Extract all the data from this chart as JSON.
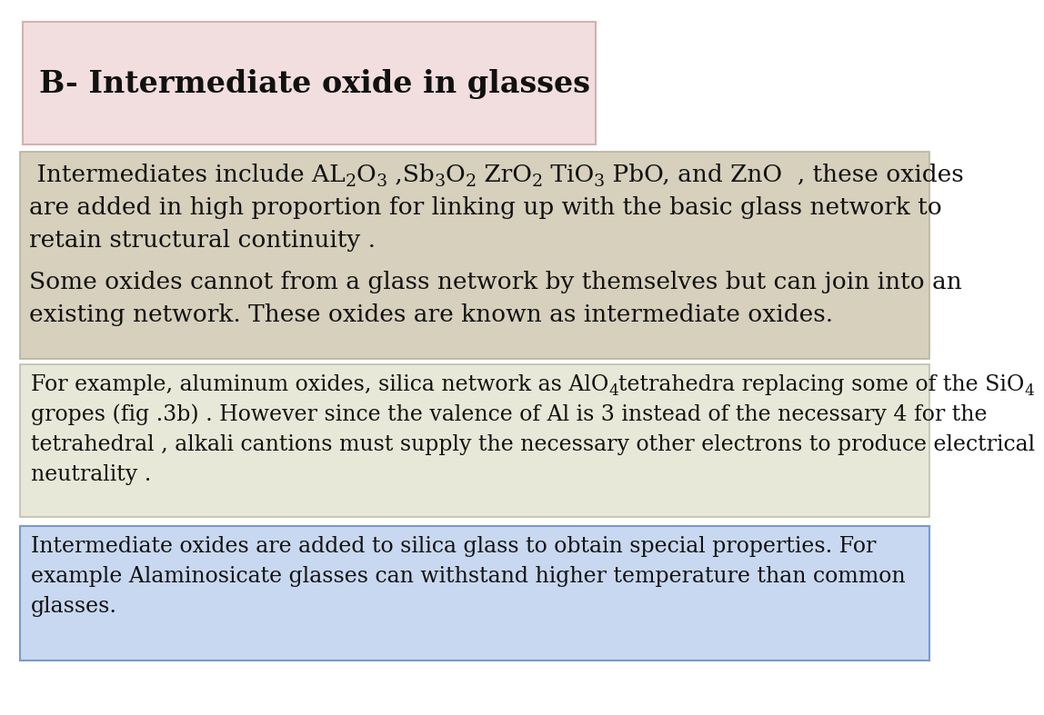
{
  "title": "B- Intermediate oxide in glasses",
  "title_bg": "#f2dede",
  "section1_bg": "#d6d0bc",
  "section2_bg": "#e8e8d8",
  "section3_bg": "#c8d8f0",
  "bg_color": "#ffffff",
  "title_fontsize": 24,
  "body_fontsize": 19,
  "small_fontsize": 17,
  "para1_line2": "are added in high proportion for linking up with the basic glass network to",
  "para1_line3": "retain structural continuity .",
  "para2_line1": "Some oxides cannot from a glass network by themselves but can join into an",
  "para2_line2": "existing network. These oxides are known as intermediate oxides.",
  "para3_line2": "gropes (fig .3b) . However since the valence of Al is 3 instead of the necessary 4 for the",
  "para3_line3": "tetrahedral , alkali cantions must supply the necessary other electrons to produce electrical",
  "para3_line4": "neutrality .",
  "para4_line1": "Intermediate oxides are added to silica glass to obtain special properties. For",
  "para4_line2": "example Alaminosicate glasses can withstand higher temperature than common",
  "para4_line3": "glasses."
}
